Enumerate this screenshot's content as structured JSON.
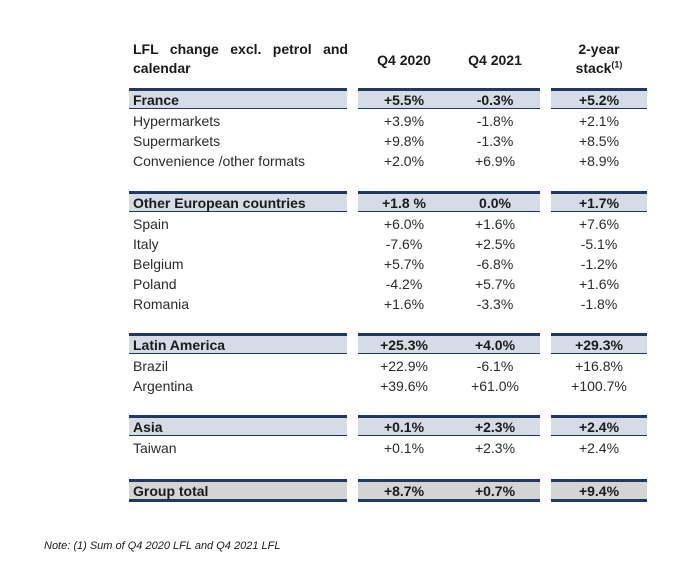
{
  "header": {
    "label": "LFL change excl. petrol and calendar",
    "col1": "Q4 2020",
    "col2": "Q4 2021",
    "col3": "2-year stack",
    "col3_sup": "(1)"
  },
  "groups": [
    {
      "name": "France",
      "q4_2020": "+5.5%",
      "q4_2021": "-0.3%",
      "stack": "+5.2%",
      "rows": [
        {
          "name": "Hypermarkets",
          "q4_2020": "+3.9%",
          "q4_2021": "-1.8%",
          "stack": "+2.1%"
        },
        {
          "name": "Supermarkets",
          "q4_2020": "+9.8%",
          "q4_2021": "-1.3%",
          "stack": "+8.5%"
        },
        {
          "name": "Convenience /other formats",
          "q4_2020": "+2.0%",
          "q4_2021": "+6.9%",
          "stack": "+8.9%"
        }
      ]
    },
    {
      "name": "Other European countries",
      "q4_2020": "+1.8 %",
      "q4_2021": "0.0%",
      "stack": "+1.7%",
      "rows": [
        {
          "name": "Spain",
          "q4_2020": "+6.0%",
          "q4_2021": "+1.6%",
          "stack": "+7.6%"
        },
        {
          "name": "Italy",
          "q4_2020": "-7.6%",
          "q4_2021": "+2.5%",
          "stack": "-5.1%"
        },
        {
          "name": "Belgium",
          "q4_2020": "+5.7%",
          "q4_2021": "-6.8%",
          "stack": "-1.2%"
        },
        {
          "name": "Poland",
          "q4_2020": "-4.2%",
          "q4_2021": "+5.7%",
          "stack": "+1.6%"
        },
        {
          "name": "Romania",
          "q4_2020": "+1.6%",
          "q4_2021": "-3.3%",
          "stack": "-1.8%"
        }
      ]
    },
    {
      "name": "Latin America",
      "q4_2020": "+25.3%",
      "q4_2021": "+4.0%",
      "stack": "+29.3%",
      "rows": [
        {
          "name": "Brazil",
          "q4_2020": "+22.9%",
          "q4_2021": "-6.1%",
          "stack": "+16.8%"
        },
        {
          "name": "Argentina",
          "q4_2020": "+39.6%",
          "q4_2021": "+61.0%",
          "stack": "+100.7%"
        }
      ]
    },
    {
      "name": "Asia",
      "q4_2020": "+0.1%",
      "q4_2021": "+2.3%",
      "stack": "+2.4%",
      "rows": [
        {
          "name": "Taiwan",
          "q4_2020": "+0.1%",
          "q4_2021": "+2.3%",
          "stack": "+2.4%"
        }
      ]
    }
  ],
  "total": {
    "name": "Group total",
    "q4_2020": "+8.7%",
    "q4_2021": "+0.7%",
    "stack": "+9.4%"
  },
  "note": "Note: (1) Sum of Q4 2020 LFL and Q4 2021 LFL",
  "colors": {
    "rule": "#1f3864",
    "group_band": "#d6dce5",
    "total_band": "#d4d4d4"
  }
}
